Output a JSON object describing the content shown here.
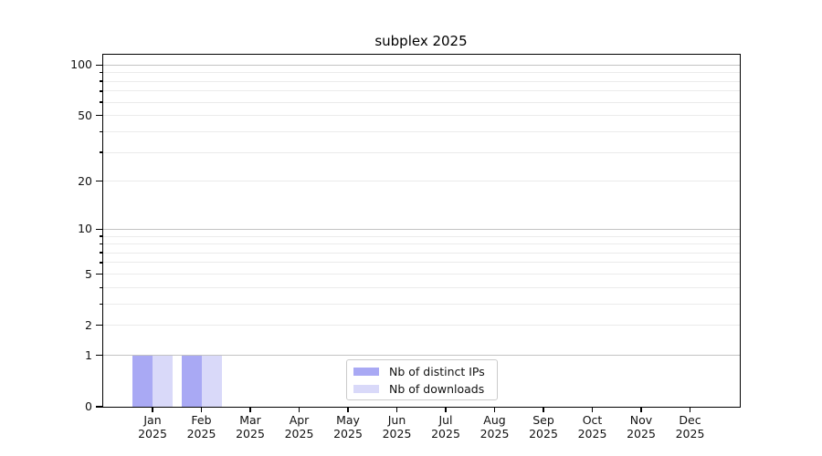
{
  "title": "subplex 2025",
  "chart_data": {
    "type": "bar",
    "title": "subplex 2025",
    "months": [
      "Jan",
      "Feb",
      "Mar",
      "Apr",
      "May",
      "Jun",
      "Jul",
      "Aug",
      "Sep",
      "Oct",
      "Nov",
      "Dec"
    ],
    "year": "2025",
    "series": [
      {
        "name": "Nb of distinct IPs",
        "color": "#a9a9f4",
        "values": [
          1,
          1,
          0,
          0,
          0,
          0,
          0,
          0,
          0,
          0,
          0,
          0
        ]
      },
      {
        "name": "Nb of downloads",
        "color": "#d9d9f9",
        "values": [
          1,
          1,
          0,
          0,
          0,
          0,
          0,
          0,
          0,
          0,
          0,
          0
        ]
      }
    ],
    "yscale": "log1p",
    "ylim": [
      0,
      115
    ],
    "ytick_labels": [
      100,
      50,
      20,
      10,
      5,
      2,
      1,
      0
    ],
    "major_grid_values": [
      1,
      10,
      100
    ],
    "minor_grid_values": [
      2,
      3,
      4,
      5,
      6,
      7,
      8,
      9,
      20,
      30,
      40,
      50,
      60,
      70,
      80,
      90
    ],
    "minor_tick_values": [
      3,
      4,
      6,
      7,
      8,
      9,
      30,
      40,
      60,
      70,
      80,
      90
    ],
    "grid": true,
    "legend_position": "lower center"
  },
  "colors": {
    "major_grid": "#c3c3c3",
    "minor_grid": "#ebebeb",
    "spine": "#000000",
    "legend_border": "#cbcbcb"
  }
}
